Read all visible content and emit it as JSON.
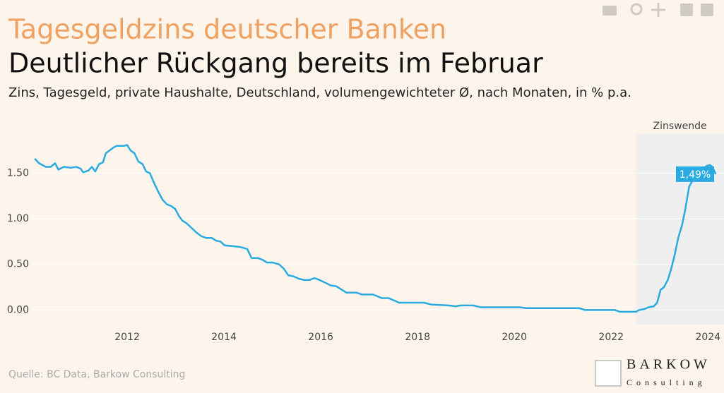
{
  "chart_data": {
    "type": "line",
    "title": "Tagesgeldzins deutscher Banken",
    "subtitle": "Deutlicher Rückgang bereits im Februar",
    "description": "Zins, Tagesgeld, private Haushalte, Deutschland, volumengewichteter Ø, nach Monaten, in % p.a.",
    "source": "Quelle: BC Data, Barkow Consulting",
    "logo": {
      "name": "BARKOW",
      "tagline": "Consulting"
    },
    "region": {
      "label": "Zinswende",
      "x0": 2022.51,
      "color": "#efefef"
    },
    "end_label": {
      "text": "1,49%",
      "value": 1.49
    },
    "xlim": [
      2010.0,
      2024.2
    ],
    "xticks": [
      2012,
      2014,
      2016,
      2018,
      2020,
      2022,
      2024
    ],
    "ylim": [
      -0.16,
      1.93
    ],
    "yticks": [
      {
        "value": 0,
        "label": "0.00"
      },
      {
        "value": 0.5,
        "label": "0.50"
      },
      {
        "value": 1,
        "label": "1.00"
      },
      {
        "value": 1.5,
        "label": "1.50"
      }
    ],
    "grid": true,
    "x": [
      2010.09,
      2010.18,
      2010.32,
      2010.42,
      2010.51,
      2010.58,
      2010.69,
      2010.83,
      2010.95,
      2011.04,
      2011.09,
      2011.2,
      2011.27,
      2011.34,
      2011.42,
      2011.5,
      2011.56,
      2011.71,
      2011.78,
      2011.85,
      2011.93,
      2012.0,
      2012.07,
      2012.15,
      2012.23,
      2012.32,
      2012.39,
      2012.47,
      2012.55,
      2012.64,
      2012.73,
      2012.82,
      2012.91,
      2012.99,
      2013.07,
      2013.14,
      2013.23,
      2013.31,
      2013.43,
      2013.53,
      2013.64,
      2013.75,
      2013.84,
      2013.93,
      2014.01,
      2014.19,
      2014.34,
      2014.48,
      2014.57,
      2014.7,
      2014.8,
      2014.89,
      2015.01,
      2015.14,
      2015.24,
      2015.33,
      2015.43,
      2015.56,
      2015.65,
      2015.77,
      2015.87,
      2015.97,
      2016.09,
      2016.2,
      2016.32,
      2016.41,
      2016.53,
      2016.74,
      2016.85,
      2017.08,
      2017.26,
      2017.4,
      2017.62,
      2018.13,
      2018.28,
      2018.64,
      2018.79,
      2018.89,
      2019.15,
      2019.3,
      2020.1,
      2020.25,
      2021.34,
      2021.46,
      2022.07,
      2022.18,
      2022.51,
      2022.58,
      2022.69,
      2022.77,
      2022.88,
      2022.95,
      2023.02,
      2023.09,
      2023.17,
      2023.24,
      2023.31,
      2023.39,
      2023.46,
      2023.53,
      2023.61,
      2023.68,
      2023.75,
      2023.82,
      2023.9,
      2023.97,
      2024.04,
      2024.09,
      2024.16
    ],
    "series": [
      {
        "name": "Tagesgeldzins",
        "color": "#29aae1",
        "values": [
          1.66,
          1.61,
          1.57,
          1.57,
          1.61,
          1.54,
          1.57,
          1.56,
          1.57,
          1.55,
          1.51,
          1.53,
          1.57,
          1.52,
          1.6,
          1.62,
          1.72,
          1.78,
          1.8,
          1.8,
          1.8,
          1.81,
          1.75,
          1.72,
          1.63,
          1.6,
          1.52,
          1.5,
          1.4,
          1.3,
          1.21,
          1.16,
          1.14,
          1.11,
          1.03,
          0.98,
          0.95,
          0.91,
          0.85,
          0.81,
          0.79,
          0.79,
          0.76,
          0.75,
          0.71,
          0.7,
          0.69,
          0.67,
          0.57,
          0.57,
          0.55,
          0.52,
          0.52,
          0.5,
          0.45,
          0.38,
          0.37,
          0.34,
          0.33,
          0.33,
          0.35,
          0.33,
          0.3,
          0.27,
          0.26,
          0.23,
          0.19,
          0.19,
          0.17,
          0.17,
          0.13,
          0.13,
          0.08,
          0.08,
          0.06,
          0.05,
          0.04,
          0.05,
          0.05,
          0.03,
          0.03,
          0.02,
          0.02,
          0.0,
          0.0,
          -0.02,
          -0.02,
          0.0,
          0.01,
          0.03,
          0.04,
          0.08,
          0.22,
          0.25,
          0.33,
          0.45,
          0.6,
          0.8,
          0.92,
          1.1,
          1.35,
          1.42,
          1.45,
          1.5,
          1.55,
          1.58,
          1.59,
          1.57,
          1.49
        ]
      }
    ]
  }
}
